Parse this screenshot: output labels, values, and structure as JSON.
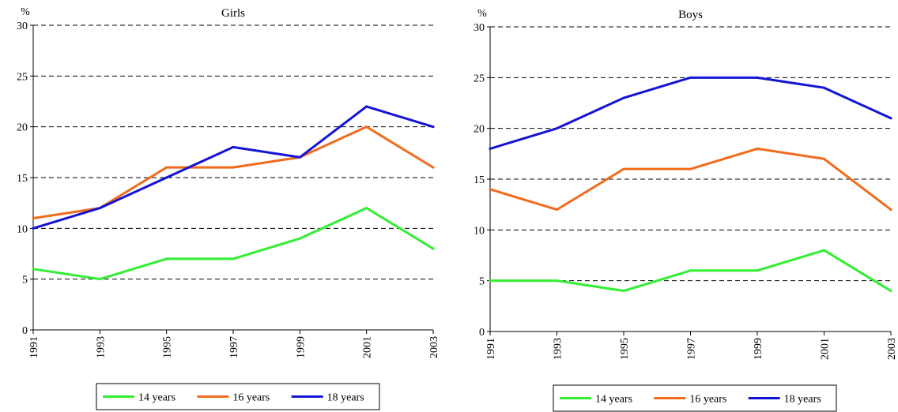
{
  "chart_data": [
    {
      "type": "line",
      "title": "Girls",
      "ylabel": "%",
      "xlabel": "",
      "ylim": [
        0,
        30
      ],
      "yticks": [
        0,
        5,
        10,
        15,
        20,
        25,
        30
      ],
      "categories": [
        "1991",
        "1993",
        "1995",
        "1997",
        "1999",
        "2001",
        "2003"
      ],
      "grid": "horizontal dashed",
      "legend_position": "bottom",
      "series": [
        {
          "name": "14 years",
          "color": "#33ee33",
          "values": [
            6,
            5,
            7,
            7,
            9,
            12,
            8
          ]
        },
        {
          "name": "16 years",
          "color": "#f26b1d",
          "values": [
            11,
            12,
            16,
            16,
            17,
            20,
            16
          ]
        },
        {
          "name": "18 years",
          "color": "#1414d6",
          "values": [
            10,
            12,
            15,
            18,
            17,
            22,
            20
          ]
        }
      ]
    },
    {
      "type": "line",
      "title": "Boys",
      "ylabel": "%",
      "xlabel": "",
      "ylim": [
        0,
        30
      ],
      "yticks": [
        0,
        5,
        10,
        15,
        20,
        25,
        30
      ],
      "categories": [
        "1991",
        "1993",
        "1995",
        "1997",
        "1999",
        "2001",
        "2003"
      ],
      "grid": "horizontal dashed",
      "legend_position": "bottom",
      "series": [
        {
          "name": "14 years",
          "color": "#33ee33",
          "values": [
            5,
            5,
            4,
            6,
            6,
            8,
            4
          ]
        },
        {
          "name": "16 years",
          "color": "#f26b1d",
          "values": [
            14,
            12,
            16,
            16,
            18,
            17,
            12
          ]
        },
        {
          "name": "18 years",
          "color": "#1414d6",
          "values": [
            18,
            20,
            23,
            25,
            25,
            24,
            21
          ]
        }
      ]
    }
  ]
}
